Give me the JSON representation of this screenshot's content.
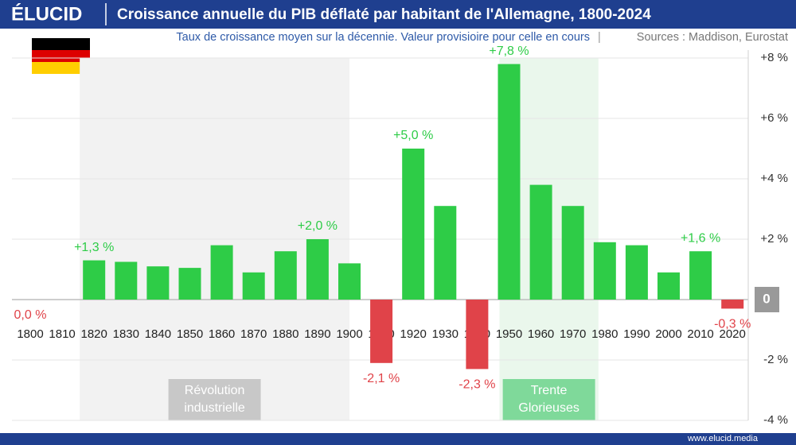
{
  "brand": "ÉLUCID",
  "footer": "www.elucid.media",
  "chart_data": {
    "type": "bar",
    "title": "Croissance annuelle du PIB déflaté par habitant de l'Allemagne, 1800-2024",
    "subtitle": "Taux de croissance moyen sur la décennie. Valeur provisioire pour celle en cours",
    "sources": "Sources : Maddison, Eurostat",
    "categories": [
      "1800",
      "1810",
      "1820",
      "1830",
      "1840",
      "1850",
      "1860",
      "1870",
      "1880",
      "1890",
      "1900",
      "1910",
      "1920",
      "1930",
      "1940",
      "1950",
      "1960",
      "1970",
      "1980",
      "1990",
      "2000",
      "2010",
      "2020"
    ],
    "values": [
      0.0,
      null,
      1.3,
      1.25,
      1.1,
      1.05,
      1.8,
      0.9,
      1.6,
      2.0,
      1.2,
      -2.1,
      5.0,
      3.1,
      -2.3,
      7.8,
      3.8,
      3.1,
      1.9,
      1.8,
      0.9,
      1.6,
      -0.3
    ],
    "value_labels": [
      "0,0 %",
      null,
      "+1,3 %",
      null,
      null,
      null,
      null,
      null,
      null,
      "+2,0 %",
      null,
      "-2,1 %",
      "+5,0 %",
      null,
      "-2,3 %",
      "+7,8 %",
      null,
      null,
      null,
      null,
      null,
      "+1,6 %",
      "-0,3 %"
    ],
    "colors": {
      "positive": "#2ecc47",
      "negative": "#e04349"
    },
    "ylim": [
      -4,
      8
    ],
    "yticks": [
      {
        "value": 8,
        "label": "+8 %"
      },
      {
        "value": 6,
        "label": "+6 %"
      },
      {
        "value": 4,
        "label": "+4 %"
      },
      {
        "value": 2,
        "label": "+2 %"
      },
      0,
      {
        "value": -2,
        "label": "-2 %"
      },
      {
        "value": -4,
        "label": "-4 %"
      }
    ],
    "grid": true,
    "annotations": [
      {
        "lines": [
          "Révolution",
          "industrielle"
        ],
        "from": 1815.5,
        "to": 1900,
        "color": "#f2f2f2",
        "label_color": "#c8c8c8"
      },
      {
        "lines": [
          "Trente",
          "Glorieuses"
        ],
        "from": 1947,
        "to": 1978,
        "color": "#eaf7ec",
        "label_color": "#7fd99a"
      }
    ]
  }
}
